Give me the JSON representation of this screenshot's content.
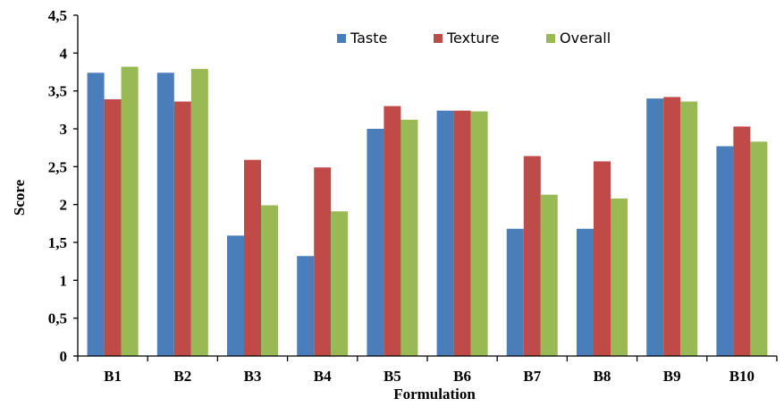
{
  "chart_data": {
    "type": "bar",
    "title": "",
    "xlabel": "Formulation",
    "ylabel": "Score",
    "ylim": [
      0,
      4.5
    ],
    "ytick_labels": [
      "0",
      "0,5",
      "1",
      "1,5",
      "2",
      "2,5",
      "3",
      "3,5",
      "4",
      "4,5"
    ],
    "categories": [
      "B1",
      "B2",
      "B3",
      "B4",
      "B5",
      "B6",
      "B7",
      "B8",
      "B9",
      "B10"
    ],
    "series": [
      {
        "name": "Taste",
        "color": "#4a7ebb",
        "values": [
          3.74,
          3.74,
          1.59,
          1.32,
          3.0,
          3.24,
          1.68,
          1.68,
          3.4,
          2.77
        ]
      },
      {
        "name": "Texture",
        "color": "#be4b48",
        "values": [
          3.39,
          3.36,
          2.59,
          2.49,
          3.3,
          3.24,
          2.64,
          2.57,
          3.42,
          3.03
        ]
      },
      {
        "name": "Overall",
        "color": "#98b954",
        "values": [
          3.82,
          3.79,
          1.99,
          1.91,
          3.12,
          3.23,
          2.13,
          2.08,
          3.36,
          2.83
        ]
      }
    ],
    "grid": false,
    "legend_position": "top-center"
  }
}
